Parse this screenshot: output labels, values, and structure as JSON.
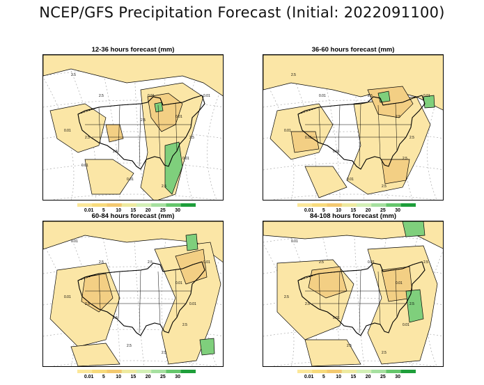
{
  "title": "NCEP/GFS Precipitation Forecast (Initial: 2022091100)",
  "panels": [
    {
      "title": "12-36 hours forecast (mm)",
      "labels": [
        "2.5",
        "0.01",
        "2.5",
        "0.01",
        "0.01",
        "0.01",
        "0.01",
        "2.5",
        "2.5",
        "2.5",
        "2.5",
        "0.01",
        "0.01",
        "2.5"
      ]
    },
    {
      "title": "36-60 hours forecast (mm)",
      "labels": [
        "2.5",
        "0.01",
        "0.01",
        "2.5",
        "2.5",
        "0.01",
        "2.5",
        "0.01",
        "2.5",
        "0.01",
        "2.5",
        "0.01"
      ]
    },
    {
      "title": "60-84 hours forecast (mm)",
      "labels": [
        "0.01",
        "0.01",
        "2.5",
        "0.01",
        "2.5",
        "2.5",
        "2.5",
        "2.5",
        "0.01",
        "2.5",
        "2.5",
        "0.01"
      ]
    },
    {
      "title": "84-108 hours forecast (mm)",
      "labels": [
        "0.01",
        "2.5",
        "2.5",
        "0.01",
        "0.01",
        "2.5",
        "0.01",
        "2.5",
        "2.5",
        "0.01",
        "2.5",
        "2.5"
      ]
    }
  ],
  "legend": {
    "labels": [
      "0.01",
      "5",
      "10",
      "15",
      "20",
      "25",
      "30"
    ],
    "colors": [
      "#fce89a",
      "#f8db7c",
      "#f3c970",
      "#eeeaa0",
      "#d3f0b6",
      "#a6e0a0",
      "#65c66c",
      "#1e9e3a"
    ]
  },
  "colors": {
    "light": "#fbe6a6",
    "medium": "#f3cf84",
    "pale_green": "#cdeec0",
    "green": "#7fcf7c",
    "dark_green": "#2d9e47",
    "contour": "#000000",
    "grid": "#aaaaaa"
  }
}
